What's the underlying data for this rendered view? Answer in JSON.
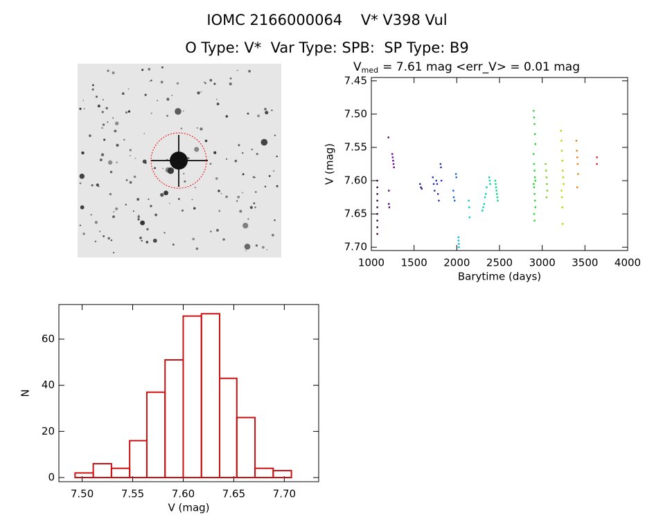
{
  "header": {
    "title": "IOMC 2166000064    V* V398 Vul",
    "subtitle": "O Type: V*  Var Type: SPB:  SP Type: B9"
  },
  "chart_data": [
    {
      "type": "scatter",
      "title": {
        "main": "V",
        "sub": "med",
        "rest": "= 7.61 mag <err_V> = 0.01 mag"
      },
      "xlabel": "Barytime (days)",
      "ylabel": "V (mag)",
      "xlim": [
        1000,
        4000
      ],
      "xticks": [
        1000,
        1500,
        2000,
        2500,
        3000,
        3500,
        4000
      ],
      "ylim": [
        7.705,
        7.445
      ],
      "yticks": [
        7.45,
        {
          "value": 7.5,
          "label": "7.50"
        },
        7.55,
        {
          "value": 7.6,
          "label": "7.60"
        },
        7.65,
        {
          "value": 7.7,
          "label": "7.70"
        }
      ],
      "series": [
        {
          "color": "#300030",
          "x": [
            1070,
            1070,
            1070,
            1070,
            1070,
            1070,
            1070,
            1070,
            1070
          ],
          "values": [
            7.6,
            7.61,
            7.62,
            7.63,
            7.64,
            7.65,
            7.66,
            7.67,
            7.68
          ]
        },
        {
          "color": "#500070",
          "x": [
            1200,
            1205,
            1205,
            1210
          ],
          "values": [
            7.535,
            7.615,
            7.635,
            7.64
          ]
        },
        {
          "color": "#6a00a0",
          "x": [
            1245,
            1250,
            1255,
            1260,
            1265
          ],
          "values": [
            7.56,
            7.565,
            7.57,
            7.575,
            7.58
          ]
        },
        {
          "color": "#202090",
          "x": [
            1570,
            1580,
            1590
          ],
          "values": [
            7.605,
            7.61,
            7.612
          ]
        },
        {
          "color": "#2030b0",
          "x": [
            1720,
            1730,
            1740,
            1760,
            1770,
            1780,
            1790,
            1810,
            1815,
            1820
          ],
          "values": [
            7.595,
            7.605,
            7.615,
            7.6,
            7.605,
            7.62,
            7.63,
            7.575,
            7.58,
            7.6
          ]
        },
        {
          "color": "#1060d0",
          "x": [
            1960,
            1965,
            1975,
            1990,
            1995
          ],
          "values": [
            7.615,
            7.625,
            7.63,
            7.59,
            7.595
          ]
        },
        {
          "color": "#00b8e8",
          "x": [
            2020,
            2020,
            2025,
            2025
          ],
          "values": [
            7.685,
            7.69,
            7.695,
            7.7
          ]
        },
        {
          "color": "#00c8d0",
          "x": [
            2140,
            2145,
            2150
          ],
          "values": [
            7.63,
            7.64,
            7.655
          ]
        },
        {
          "color": "#00d0b0",
          "x": [
            2300,
            2310,
            2320,
            2330,
            2340,
            2350,
            2380,
            2385,
            2390
          ],
          "values": [
            7.645,
            7.64,
            7.635,
            7.625,
            7.62,
            7.61,
            7.595,
            7.6,
            7.605
          ]
        },
        {
          "color": "#00d880",
          "x": [
            2450,
            2455,
            2460,
            2465,
            2470,
            2475,
            2480
          ],
          "values": [
            7.6,
            7.605,
            7.61,
            7.615,
            7.62,
            7.625,
            7.63
          ]
        },
        {
          "color": "#20d030",
          "x": [
            2900,
            2905,
            2910,
            2915,
            2920,
            2900,
            2905,
            2910,
            2915,
            2920,
            2900,
            2905,
            2910,
            2915,
            2920,
            2905,
            2910
          ],
          "values": [
            7.495,
            7.505,
            7.515,
            7.53,
            7.545,
            7.56,
            7.575,
            7.585,
            7.595,
            7.6,
            7.605,
            7.61,
            7.62,
            7.63,
            7.64,
            7.65,
            7.66
          ]
        },
        {
          "color": "#70d020",
          "x": [
            3040,
            3045,
            3050,
            3055,
            3060,
            3050
          ],
          "values": [
            7.575,
            7.585,
            7.595,
            7.605,
            7.615,
            7.625
          ]
        },
        {
          "color": "#b8d000",
          "x": [
            3220,
            3225,
            3230,
            3235,
            3240,
            3245,
            3250,
            3225,
            3230,
            3235,
            3240
          ],
          "values": [
            7.525,
            7.54,
            7.555,
            7.57,
            7.585,
            7.595,
            7.605,
            7.615,
            7.625,
            7.64,
            7.665
          ]
        },
        {
          "color": "#e08010",
          "x": [
            3400,
            3405,
            3410,
            3415,
            3420,
            3410
          ],
          "values": [
            7.54,
            7.555,
            7.565,
            7.575,
            7.59,
            7.61
          ]
        },
        {
          "color": "#e02020",
          "x": [
            3640,
            3640
          ],
          "values": [
            7.565,
            7.575
          ]
        }
      ]
    },
    {
      "type": "histogram",
      "xlabel": "V (mag)",
      "ylabel": "N",
      "color": "#cc1010",
      "bins": [
        7.493,
        7.511,
        7.529,
        7.547,
        7.564,
        7.582,
        7.6,
        7.618,
        7.636,
        7.653,
        7.671,
        7.689,
        7.707
      ],
      "values": [
        2,
        6,
        4,
        16,
        37,
        51,
        70,
        71,
        43,
        26,
        4,
        3
      ],
      "xlim": [
        7.477,
        7.734
      ],
      "xticks": [
        {
          "value": 7.5,
          "label": "7.50"
        },
        7.55,
        {
          "value": 7.6,
          "label": "7.60"
        },
        7.65,
        {
          "value": 7.7,
          "label": "7.70"
        }
      ],
      "ylim": [
        -1.8,
        75
      ],
      "yticks": [
        0,
        20,
        40,
        60
      ]
    }
  ]
}
